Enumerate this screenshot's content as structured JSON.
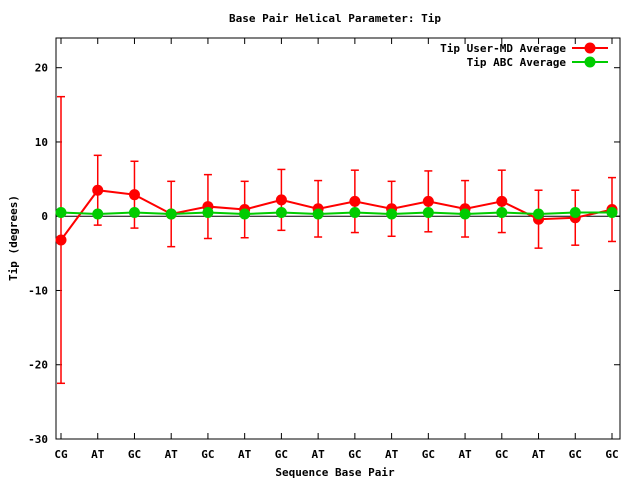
{
  "chart_data": {
    "type": "line",
    "title": "Base Pair Helical Parameter: Tip",
    "xlabel": "Sequence Base Pair",
    "ylabel": "Tip (degrees)",
    "ylim": [
      -30,
      24
    ],
    "yticks": [
      -30,
      -20,
      -10,
      0,
      10,
      20
    ],
    "ytick_labels": [
      "-30",
      "-20",
      "-10",
      "0",
      "10",
      "20"
    ],
    "categories": [
      "CG",
      "AT",
      "GC",
      "AT",
      "GC",
      "AT",
      "GC",
      "AT",
      "GC",
      "AT",
      "GC",
      "AT",
      "GC",
      "AT",
      "GC",
      "GC"
    ],
    "legend_position": "top-right",
    "grid": false,
    "series": [
      {
        "name": "Tip User-MD Average",
        "color": "#ff0000",
        "values": [
          -3.2,
          3.5,
          2.9,
          0.3,
          1.3,
          0.9,
          2.2,
          1.0,
          2.0,
          1.0,
          2.0,
          1.0,
          2.0,
          -0.4,
          -0.2,
          0.9
        ],
        "error": [
          19.3,
          4.7,
          4.5,
          4.4,
          4.3,
          3.8,
          4.1,
          3.8,
          4.2,
          3.7,
          4.1,
          3.8,
          4.2,
          3.9,
          3.7,
          4.3
        ]
      },
      {
        "name": "Tip ABC Average",
        "color": "#00cc00",
        "values": [
          0.5,
          0.3,
          0.5,
          0.3,
          0.5,
          0.3,
          0.5,
          0.3,
          0.5,
          0.3,
          0.5,
          0.3,
          0.5,
          0.3,
          0.5,
          0.5
        ]
      }
    ]
  }
}
